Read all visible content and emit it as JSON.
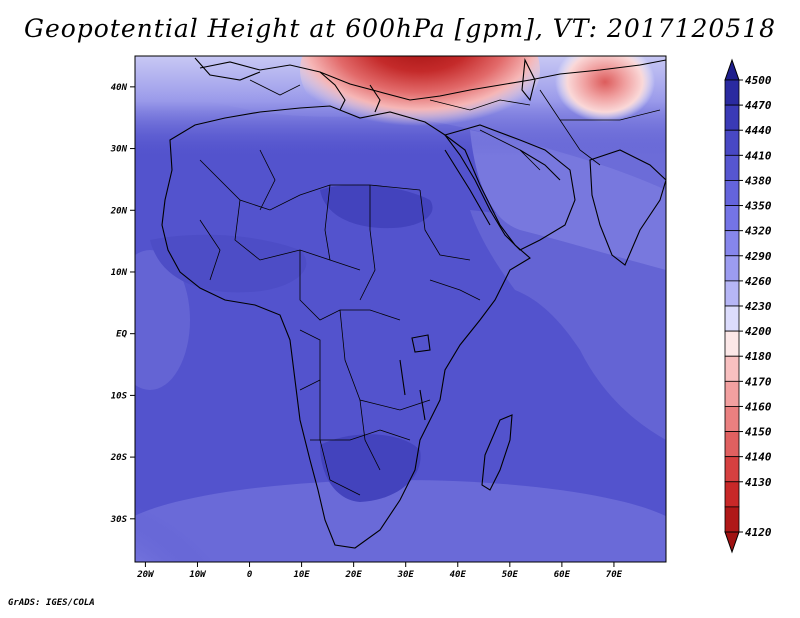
{
  "title": "Geopotential Height at 600hPa [gpm], VT: 2017120518",
  "credit": "GrADS: IGES/COLA",
  "map": {
    "lat_labels": [
      "40N",
      "30N",
      "20N",
      "10N",
      "EQ",
      "10S",
      "20S",
      "30S"
    ],
    "lon_labels": [
      "20W",
      "10W",
      "0",
      "10E",
      "20E",
      "30E",
      "40E",
      "50E",
      "60E",
      "70E"
    ],
    "lat_values": [
      40,
      30,
      20,
      10,
      0,
      -10,
      -20,
      -30
    ],
    "lon_values": [
      -20,
      -10,
      0,
      10,
      20,
      30,
      40,
      50,
      60,
      70
    ],
    "extent": {
      "lon_min": -22,
      "lon_max": 80,
      "lat_min": -37,
      "lat_max": 45
    }
  },
  "colorbar": {
    "labels": [
      "4500",
      "4470",
      "4440",
      "4410",
      "4380",
      "4350",
      "4320",
      "4290",
      "4260",
      "4230",
      "4200",
      "4180",
      "4170",
      "4160",
      "4150",
      "4140",
      "4130",
      "4120"
    ],
    "colors": [
      "#2a2aa0",
      "#3a3ab6",
      "#4848c4",
      "#5656d0",
      "#6464dc",
      "#7474e6",
      "#8686ec",
      "#9c9cf0",
      "#b6b6f6",
      "#dcdcfc",
      "#fce8e8",
      "#f8c0c0",
      "#f2a0a0",
      "#ea8080",
      "#e06060",
      "#d64040",
      "#c82828",
      "#b01818"
    ],
    "top_arrow_color": "#1e1e8c",
    "bottom_arrow_color": "#a01212"
  },
  "field_colors": {
    "base": "#5353cd",
    "deep": "#4343bd",
    "light": "#6a6ad8",
    "pale": "#8c8ce6",
    "whitish": "#e8e8fc",
    "red_dark": "#b41414",
    "red_mid": "#d84848",
    "red_light": "#f09c9c",
    "pink": "#fadada"
  }
}
